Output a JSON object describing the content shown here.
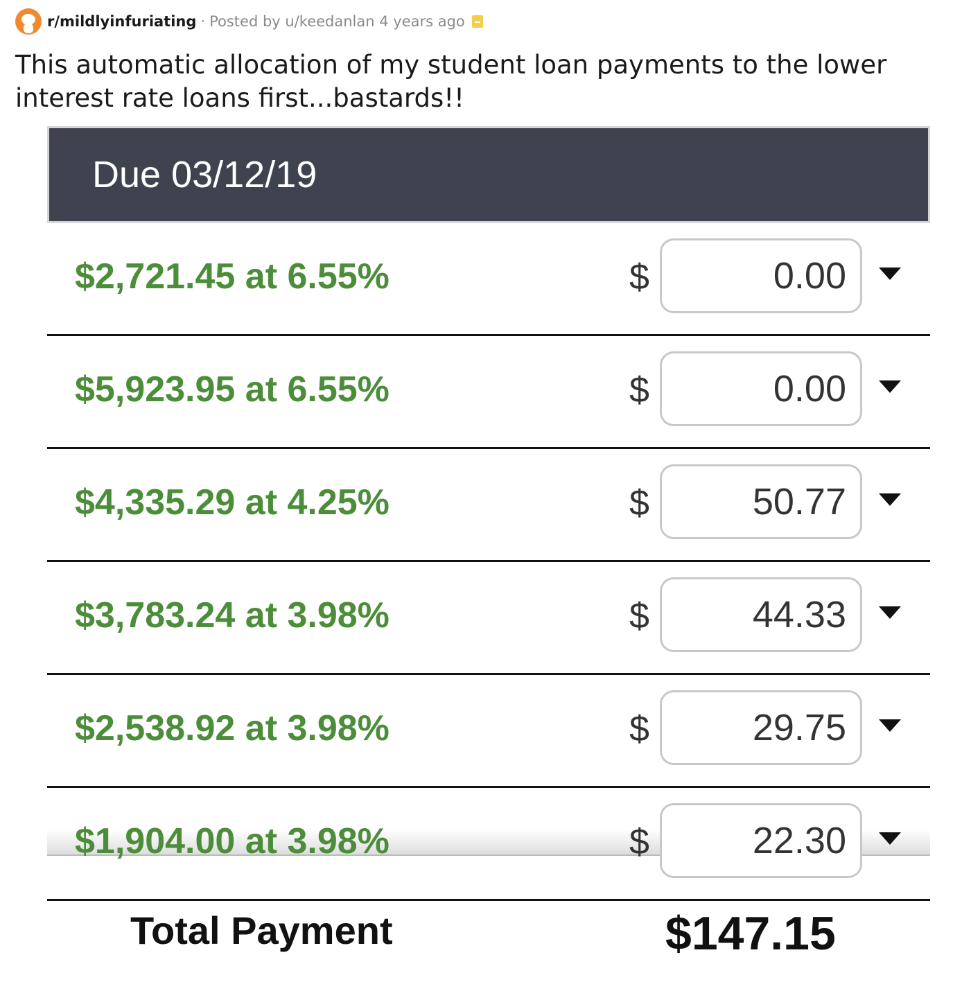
{
  "post": {
    "subreddit": "r/mildlyinfuriating",
    "separator": "·",
    "posted_by": "Posted by u/keedanlan 4 years ago",
    "title": "This automatic allocation of my student loan payments to the lower interest rate loans first...bastards!!"
  },
  "statement": {
    "due": "Due 03/12/19",
    "currency_symbol": "$",
    "loans": [
      {
        "label": "$2,721.45 at 6.55%",
        "amount": "0.00"
      },
      {
        "label": "$5,923.95 at 6.55%",
        "amount": "0.00"
      },
      {
        "label": "$4,335.29 at 4.25%",
        "amount": "50.77"
      },
      {
        "label": "$3,783.24 at 3.98%",
        "amount": "44.33"
      },
      {
        "label": "$2,538.92 at 3.98%",
        "amount": "29.75"
      },
      {
        "label": "$1,904.00 at 3.98%",
        "amount": "22.30"
      }
    ],
    "total_label": "Total Payment",
    "total_value": "$147.15"
  },
  "colors": {
    "header_bg": "#3f4350",
    "loan_text": "#4c8d3a",
    "subreddit_icon": "#f08a32",
    "archive_icon": "#f4cd4a"
  }
}
